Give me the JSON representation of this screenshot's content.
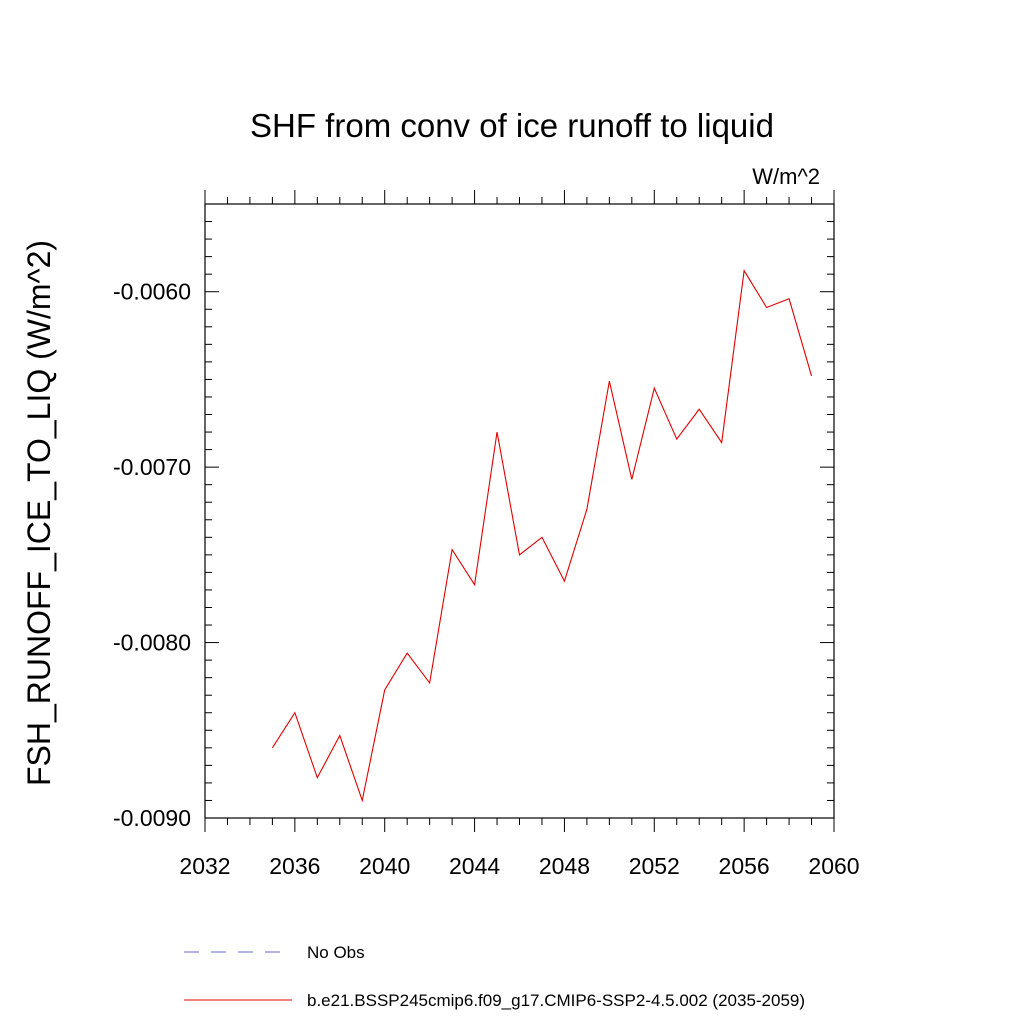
{
  "chart_data": {
    "type": "line",
    "title": "SHF from conv of ice runoff to liquid",
    "units": "W/m^2",
    "ylabel": "FSH_RUNOFF_ICE_TO_LIQ  (W/m^2)",
    "xlabel": "",
    "xlim": [
      2032,
      2060
    ],
    "ylim": [
      -0.009,
      -0.0055
    ],
    "x_ticks": [
      2032,
      2036,
      2040,
      2044,
      2048,
      2052,
      2056,
      2060
    ],
    "x_tick_labels": [
      "2032",
      "2036",
      "2040",
      "2044",
      "2048",
      "2052",
      "2056",
      "2060"
    ],
    "y_ticks": [
      -0.009,
      -0.008,
      -0.007,
      -0.006
    ],
    "y_tick_labels": [
      "-0.0090",
      "-0.0080",
      "-0.0070",
      "-0.0060"
    ],
    "grid": false,
    "legend": {
      "placement": "bottom",
      "entries": [
        {
          "label": "No Obs",
          "color": "#6a6ad0",
          "style": "dashed"
        },
        {
          "label": "b.e21.BSSP245cmip6.f09_g17.CMIP6-SSP2-4.5.002 (2035-2059)",
          "color": "#e00000",
          "style": "solid"
        }
      ]
    },
    "series": [
      {
        "color": "#e00000",
        "x": [
          2035,
          2036,
          2037,
          2038,
          2039,
          2040,
          2041,
          2042,
          2043,
          2044,
          2045,
          2046,
          2047,
          2048,
          2049,
          2050,
          2051,
          2052,
          2053,
          2054,
          2055,
          2056,
          2057,
          2058,
          2059
        ],
        "values": [
          -0.0086,
          -0.0084,
          -0.00877,
          -0.00853,
          -0.0089,
          -0.00827,
          -0.00806,
          -0.00823,
          -0.00747,
          -0.00767,
          -0.0068,
          -0.0075,
          -0.0074,
          -0.00765,
          -0.00724,
          -0.00651,
          -0.00707,
          -0.00655,
          -0.00684,
          -0.00667,
          -0.00686,
          -0.00588,
          -0.00609,
          -0.00604,
          -0.00648
        ]
      }
    ]
  }
}
